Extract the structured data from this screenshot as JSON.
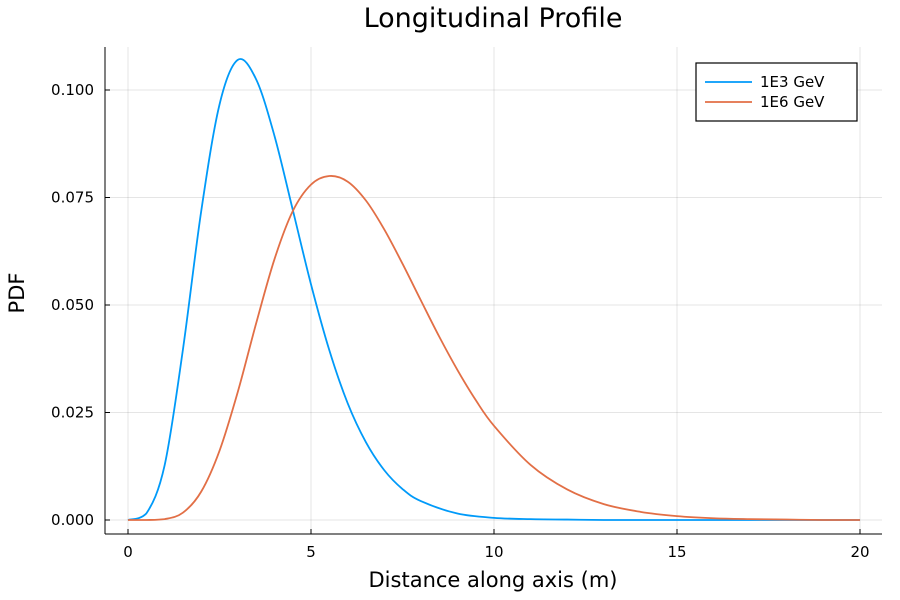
{
  "chart_data": {
    "type": "line",
    "title": "Longitudinal Profile",
    "xlabel": "Distance along axis (m)",
    "ylabel": "PDF",
    "xlim": [
      0,
      20
    ],
    "ylim": [
      0,
      0.11
    ],
    "xticks": [
      0,
      5,
      10,
      15,
      20
    ],
    "xtick_labels": [
      "0",
      "5",
      "10",
      "15",
      "20"
    ],
    "yticks": [
      0,
      0.025,
      0.05,
      0.075,
      0.1
    ],
    "ytick_labels": [
      "0.000",
      "0.025",
      "0.050",
      "0.075",
      "0.100"
    ],
    "grid": true,
    "legend_position": "top-right",
    "series": [
      {
        "name": "1E3 GeV",
        "color": "#009af9",
        "x": [
          0,
          0.5,
          1,
          1.5,
          2,
          2.5,
          3,
          3.5,
          4,
          4.5,
          5,
          5.5,
          6,
          6.5,
          7,
          7.5,
          8,
          9,
          10,
          11,
          12,
          13,
          14,
          15,
          16,
          17,
          18,
          19,
          20
        ],
        "y": [
          0,
          0.0015,
          0.0127,
          0.0396,
          0.0718,
          0.0966,
          0.107,
          0.1025,
          0.0894,
          0.0722,
          0.0548,
          0.0395,
          0.0272,
          0.0181,
          0.0116,
          0.0072,
          0.0044,
          0.0015,
          0.0005,
          0.0002,
          0.0001,
          0,
          0,
          0,
          0,
          0,
          0,
          0,
          0
        ]
      },
      {
        "name": "1E6 GeV",
        "color": "#e26f46",
        "x": [
          0,
          0.5,
          1,
          1.5,
          2,
          2.5,
          3,
          3.5,
          4,
          4.5,
          5,
          5.5,
          6,
          6.5,
          7,
          7.5,
          8,
          8.5,
          9,
          9.5,
          10,
          11,
          12,
          13,
          14,
          15,
          16,
          17,
          18,
          19,
          20
        ],
        "y": [
          0,
          0,
          0.0002,
          0.0017,
          0.0066,
          0.0161,
          0.0298,
          0.0457,
          0.0606,
          0.0718,
          0.078,
          0.08,
          0.0787,
          0.0743,
          0.0676,
          0.0596,
          0.0511,
          0.0427,
          0.0349,
          0.0279,
          0.0219,
          0.0128,
          0.0071,
          0.0037,
          0.0019,
          0.0009,
          0.0004,
          0.0002,
          0.0001,
          0,
          0
        ]
      }
    ]
  }
}
